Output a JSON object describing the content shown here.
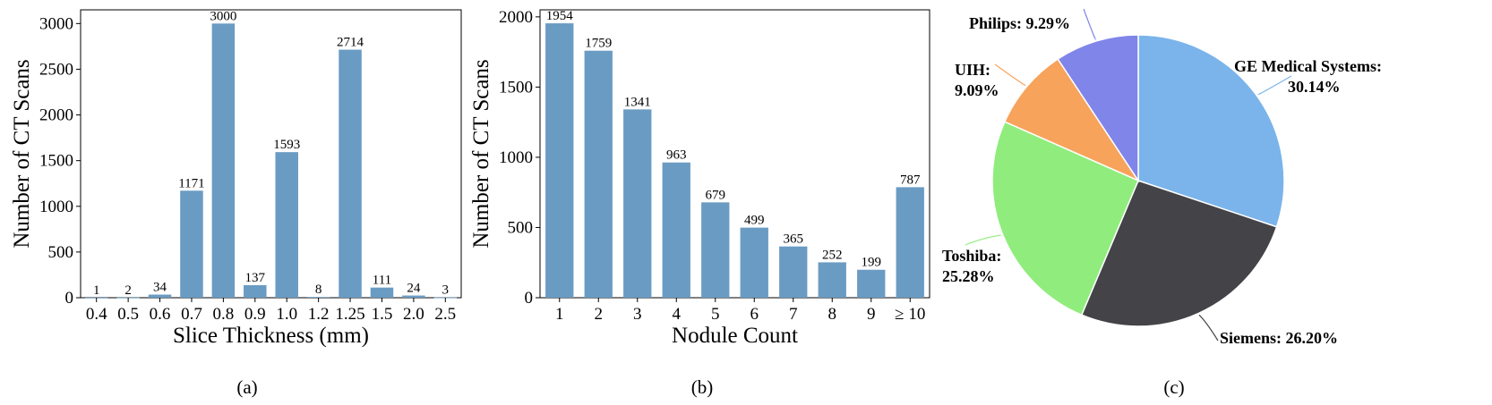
{
  "bar_color": "#6a9bc3",
  "chart_data": [
    {
      "type": "bar",
      "caption": "(a)",
      "xlabel": "Slice Thickness (mm)",
      "ylabel": "Number of CT Scans",
      "ylim": [
        0,
        3150
      ],
      "yticks": [
        0,
        500,
        1000,
        1500,
        2000,
        2500,
        3000
      ],
      "categories": [
        "0.4",
        "0.5",
        "0.6",
        "0.7",
        "0.8",
        "0.9",
        "1.0",
        "1.2",
        "1.25",
        "1.5",
        "2.0",
        "2.5"
      ],
      "values": [
        1,
        2,
        34,
        1171,
        3000,
        137,
        1593,
        8,
        2714,
        111,
        24,
        3
      ]
    },
    {
      "type": "bar",
      "caption": "(b)",
      "xlabel": "Nodule Count",
      "ylabel": "Number of CT Scans",
      "ylim": [
        0,
        2050
      ],
      "yticks": [
        0,
        500,
        1000,
        1500,
        2000
      ],
      "categories": [
        "1",
        "2",
        "3",
        "4",
        "5",
        "6",
        "7",
        "8",
        "9",
        "≥ 10"
      ],
      "values": [
        1954,
        1759,
        1341,
        963,
        679,
        499,
        365,
        252,
        199,
        787
      ]
    },
    {
      "type": "pie",
      "caption": "(c)",
      "slices": [
        {
          "label": "GE Medical Systems:",
          "pct_text": "30.14%",
          "value": 30.14,
          "color": "#7ab4ea"
        },
        {
          "label": "Siemens:",
          "pct_text": "26.20%",
          "value": 26.2,
          "color": "#434348"
        },
        {
          "label": "Toshiba:",
          "pct_text": "25.28%",
          "value": 25.28,
          "color": "#90ed7d"
        },
        {
          "label": "UIH:",
          "pct_text": "9.09%",
          "value": 9.09,
          "color": "#f7a35c"
        },
        {
          "label": "Philips:",
          "pct_text": "9.29%",
          "value": 9.29,
          "color": "#8085e9"
        }
      ]
    }
  ]
}
